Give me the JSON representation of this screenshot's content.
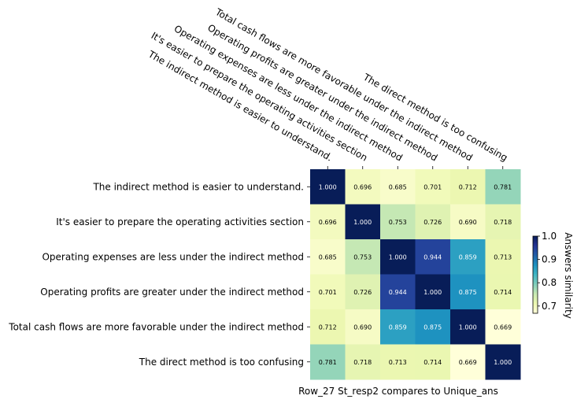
{
  "chart_data": {
    "type": "heatmap",
    "title": "",
    "xlabel": "Row_27 St_resp2 compares to Unique_ans",
    "ylabel": "",
    "x_categories": [
      "The indirect method is easier to understand.",
      "It's easier to prepare the operating activities section",
      "Operating expenses are less under the indirect method",
      "Operating profits are greater under the indirect method",
      "Total cash flows are more favorable under the indirect method",
      "The direct method is too confusing"
    ],
    "y_categories": [
      "The indirect method is easier to understand.",
      "It's easier to prepare the operating activities section",
      "Operating expenses are less under the indirect method",
      "Operating profits are greater under the indirect method",
      "Total cash flows are more favorable under the indirect method",
      "The direct method is too confusing"
    ],
    "values": [
      [
        1.0,
        0.696,
        0.685,
        0.701,
        0.712,
        0.781
      ],
      [
        0.696,
        1.0,
        0.753,
        0.726,
        0.69,
        0.718
      ],
      [
        0.685,
        0.753,
        1.0,
        0.944,
        0.859,
        0.713
      ],
      [
        0.701,
        0.726,
        0.944,
        1.0,
        0.875,
        0.714
      ],
      [
        0.712,
        0.69,
        0.859,
        0.875,
        1.0,
        0.669
      ],
      [
        0.781,
        0.718,
        0.713,
        0.714,
        0.669,
        1.0
      ]
    ],
    "value_format": "0.000",
    "colormap": "YlGnBu",
    "colorbar": {
      "label": "Answers similarity",
      "range": [
        0.669,
        1.0
      ],
      "ticks": [
        0.7,
        0.8,
        0.9,
        1.0
      ],
      "tick_labels": [
        "0.7",
        "0.8",
        "0.9",
        "1.0"
      ]
    },
    "grid": false,
    "legend": "colorbar-right"
  }
}
